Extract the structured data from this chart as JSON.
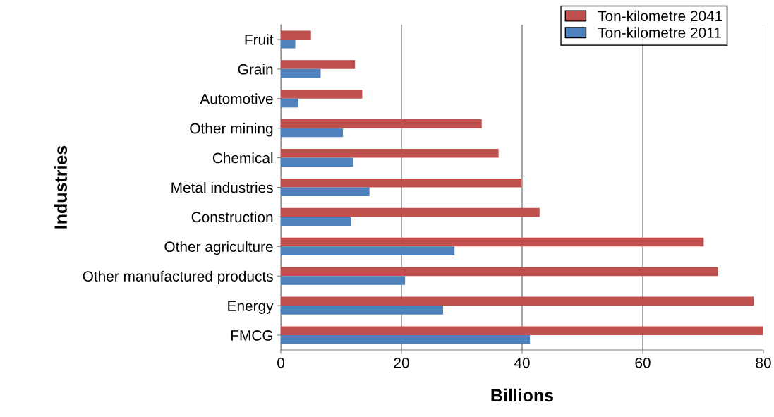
{
  "chart_data": {
    "type": "bar",
    "orientation": "horizontal",
    "xlabel": "Billions",
    "ylabel": "Industries",
    "categories": [
      "Fruit",
      "Grain",
      "Automotive",
      "Other mining",
      "Chemical",
      "Metal industries",
      "Construction",
      "Other agriculture",
      "Other manufactured products",
      "Energy",
      "FMCG"
    ],
    "series": [
      {
        "name": "Ton-kilometre 2041",
        "color": "#c0504d",
        "values": [
          5.0,
          12.3,
          13.5,
          33.3,
          36.1,
          39.9,
          42.9,
          70.1,
          72.5,
          78.4,
          80.0
        ]
      },
      {
        "name": "Ton-kilometre 2011",
        "color": "#4f81bd",
        "values": [
          2.4,
          6.6,
          2.9,
          10.3,
          12.0,
          14.7,
          11.6,
          28.8,
          20.6,
          26.9,
          41.3
        ]
      }
    ],
    "xlim": [
      0,
      80
    ],
    "xticks": [
      0,
      20,
      40,
      60,
      80
    ],
    "grid": "x",
    "legend": "top right"
  }
}
